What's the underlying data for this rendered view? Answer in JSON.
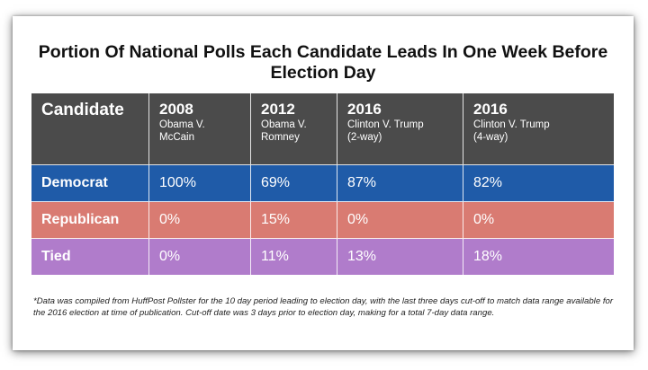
{
  "chart_data": {
    "type": "table",
    "title": "Portion Of National Polls Each Candidate Leads In One Week Before Election Day",
    "corner_label": "Candidate",
    "columns": [
      {
        "year": "2008",
        "matchup": "Obama V.\nMcCain"
      },
      {
        "year": "2012",
        "matchup": "Obama V.\nRomney"
      },
      {
        "year": "2016",
        "matchup": "Clinton V. Trump\n(2-way)"
      },
      {
        "year": "2016",
        "matchup": "Clinton V. Trump\n(4-way)"
      }
    ],
    "rows": [
      {
        "label": "Democrat",
        "color": "#1f5ba8",
        "values": [
          "100%",
          "69%",
          "87%",
          "82%"
        ]
      },
      {
        "label": "Republican",
        "color": "#d97b72",
        "values": [
          "0%",
          "15%",
          "0%",
          "0%"
        ]
      },
      {
        "label": "Tied",
        "color": "#b07ccb",
        "values": [
          "0%",
          "11%",
          "13%",
          "18%"
        ]
      }
    ],
    "header_color": "#4b4b4b",
    "footnote": "*Data was compiled from HuffPost Pollster for the 10 day period leading to election day, with the last three days cut-off to match data range available for the 2016 election at time of publication. Cut-off date was 3 days prior to election day, making for a total  7-day data range."
  }
}
